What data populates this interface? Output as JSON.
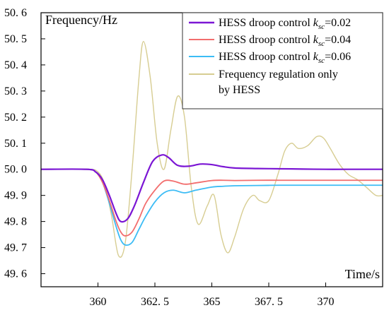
{
  "chart_data": {
    "type": "line",
    "ylabel": "Frequency/Hz",
    "xlabel": "Time/s",
    "xlim": [
      357.5,
      372.5
    ],
    "ylim": [
      49.55,
      50.6
    ],
    "x_ticks": [
      360,
      362.5,
      365,
      367.5,
      370
    ],
    "x_tick_labels": [
      "360",
      "362. 5",
      "365",
      "367. 5",
      "370"
    ],
    "y_ticks": [
      49.6,
      49.7,
      49.8,
      49.9,
      50.0,
      50.1,
      50.2,
      50.3,
      50.4,
      50.5,
      50.6
    ],
    "y_tick_labels": [
      "49. 6",
      "49. 7",
      "49. 8",
      "49. 9",
      "50. 0",
      "50. 1",
      "50. 2",
      "50. 3",
      "50. 4",
      "50. 5",
      "50. 6"
    ],
    "legend_position": "top-right",
    "series": [
      {
        "legend": {
          "prefix": "HESS droop control ",
          "k": "k",
          "sub": "sc",
          "suffix": "=0.02"
        },
        "color": "#7b16d4",
        "x": [
          357.5,
          359.5,
          359.9,
          360.2,
          360.5,
          360.8,
          361.0,
          361.3,
          361.6,
          362.0,
          362.4,
          362.8,
          363.1,
          363.5,
          364.0,
          364.5,
          365.0,
          365.5,
          366.0,
          367.0,
          368.0,
          369.0,
          370.0,
          371.0,
          372.5
        ],
        "y": [
          50.0,
          50.0,
          49.99,
          49.96,
          49.9,
          49.83,
          49.8,
          49.81,
          49.86,
          49.95,
          50.03,
          50.055,
          50.045,
          50.015,
          50.012,
          50.02,
          50.018,
          50.01,
          50.005,
          50.003,
          50.002,
          50.001,
          50.0,
          50.0,
          50.0
        ]
      },
      {
        "legend": {
          "prefix": " HESS droop control ",
          "k": "k",
          "sub": "sc",
          "suffix": "=0.04"
        },
        "color": "#f26d6d",
        "x": [
          357.5,
          359.5,
          359.9,
          360.2,
          360.5,
          360.8,
          361.0,
          361.2,
          361.5,
          361.8,
          362.1,
          362.5,
          362.9,
          363.3,
          363.8,
          364.3,
          365.0,
          365.5,
          366.0,
          367.0,
          368.0,
          369.0,
          370.0,
          371.0,
          372.5
        ],
        "y": [
          50.0,
          50.0,
          49.99,
          49.95,
          49.88,
          49.8,
          49.76,
          49.745,
          49.76,
          49.81,
          49.87,
          49.92,
          49.955,
          49.955,
          49.943,
          49.948,
          49.957,
          49.958,
          49.957,
          49.958,
          49.958,
          49.958,
          49.958,
          49.958,
          49.958
        ]
      },
      {
        "legend": {
          "prefix": "HESS droop control ",
          "k": "k",
          "sub": "sc",
          "suffix": "=0.06"
        },
        "color": "#3cbcf5",
        "x": [
          357.5,
          359.5,
          359.9,
          360.2,
          360.5,
          360.8,
          361.0,
          361.2,
          361.5,
          361.8,
          362.1,
          362.5,
          362.9,
          363.3,
          363.8,
          364.3,
          365.0,
          365.5,
          366.0,
          367.0,
          368.0,
          369.0,
          370.0,
          371.0,
          372.5
        ],
        "y": [
          50.0,
          50.0,
          49.99,
          49.95,
          49.87,
          49.78,
          49.73,
          49.71,
          49.72,
          49.77,
          49.82,
          49.875,
          49.91,
          49.92,
          49.91,
          49.92,
          49.932,
          49.935,
          49.937,
          49.938,
          49.939,
          49.939,
          49.939,
          49.939,
          49.939
        ]
      },
      {
        "legend": {
          "lines": [
            "Frequency regulation only",
            "by HESS"
          ]
        },
        "color": "#d7cd92",
        "x": [
          357.5,
          359.5,
          360.0,
          360.3,
          360.6,
          360.9,
          361.2,
          361.5,
          361.8,
          362.0,
          362.3,
          362.6,
          362.9,
          363.2,
          363.5,
          363.8,
          364.1,
          364.4,
          364.8,
          365.1,
          365.4,
          365.7,
          366.0,
          366.4,
          366.8,
          367.1,
          367.5,
          367.9,
          368.2,
          368.5,
          368.8,
          369.2,
          369.6,
          369.9,
          370.2,
          370.6,
          371.0,
          371.4,
          371.8,
          372.2,
          372.5
        ],
        "y": [
          50.0,
          50.0,
          49.99,
          49.94,
          49.82,
          49.67,
          49.72,
          50.0,
          50.35,
          50.49,
          50.35,
          50.1,
          50.0,
          50.15,
          50.28,
          50.2,
          49.93,
          49.79,
          49.86,
          49.9,
          49.75,
          49.68,
          49.74,
          49.85,
          49.9,
          49.88,
          49.88,
          49.98,
          50.07,
          50.1,
          50.08,
          50.09,
          50.125,
          50.12,
          50.08,
          50.02,
          49.98,
          49.96,
          49.93,
          49.9,
          49.9
        ]
      }
    ]
  }
}
